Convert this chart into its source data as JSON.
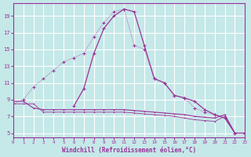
{
  "xlabel": "Windchill (Refroidissement éolien,°C)",
  "bg_color": "#c5e8e8",
  "line_color": "#993399",
  "grid_color": "#ffffff",
  "xlim": [
    0,
    23
  ],
  "ylim": [
    4.5,
    20.5
  ],
  "xticks": [
    0,
    1,
    2,
    3,
    4,
    5,
    6,
    7,
    8,
    9,
    10,
    11,
    12,
    13,
    14,
    15,
    16,
    17,
    18,
    19,
    20,
    21,
    22,
    23
  ],
  "yticks": [
    5,
    7,
    9,
    11,
    13,
    15,
    17,
    19
  ],
  "curve_dotted_x": [
    0,
    1,
    2,
    3,
    4,
    5,
    6,
    7,
    8,
    9,
    10,
    11,
    12,
    13,
    14,
    15,
    16,
    17,
    18,
    19,
    20,
    21,
    22,
    23
  ],
  "curve_dotted_y": [
    8.5,
    9.0,
    10.5,
    11.5,
    12.5,
    13.5,
    14.0,
    14.5,
    16.5,
    18.2,
    19.5,
    19.8,
    15.5,
    15.0,
    11.5,
    11.0,
    9.5,
    9.2,
    8.0,
    7.5,
    7.2,
    6.8,
    5.0,
    5.0
  ],
  "curve_solid_x": [
    6,
    7,
    8,
    9,
    10,
    11,
    12,
    13,
    14,
    15,
    16,
    17,
    18,
    19,
    20,
    21,
    22,
    23
  ],
  "curve_solid_y": [
    8.2,
    10.3,
    14.5,
    17.5,
    19.0,
    19.8,
    19.5,
    15.5,
    11.5,
    11.0,
    9.5,
    9.2,
    8.8,
    7.8,
    7.2,
    6.8,
    5.0,
    5.0
  ],
  "curve_flat1_x": [
    0,
    1,
    2,
    3,
    4,
    5,
    6,
    7,
    8,
    9,
    10,
    11,
    12,
    13,
    14,
    15,
    16,
    17,
    18,
    19,
    20,
    21,
    22,
    23
  ],
  "curve_flat1_y": [
    8.8,
    8.8,
    8.0,
    7.8,
    7.8,
    7.8,
    7.8,
    7.8,
    7.8,
    7.8,
    7.8,
    7.8,
    7.7,
    7.6,
    7.5,
    7.4,
    7.3,
    7.2,
    7.0,
    6.9,
    6.8,
    7.2,
    5.0,
    5.0
  ],
  "curve_flat2_x": [
    0,
    1,
    2,
    3,
    4,
    5,
    6,
    7,
    8,
    9,
    10,
    11,
    12,
    13,
    14,
    15,
    16,
    17,
    18,
    19,
    20,
    21,
    22,
    23
  ],
  "curve_flat2_y": [
    8.5,
    8.5,
    8.5,
    7.5,
    7.5,
    7.5,
    7.5,
    7.5,
    7.5,
    7.5,
    7.5,
    7.5,
    7.4,
    7.3,
    7.2,
    7.1,
    7.0,
    6.8,
    6.6,
    6.5,
    6.4,
    7.0,
    5.0,
    5.0
  ]
}
